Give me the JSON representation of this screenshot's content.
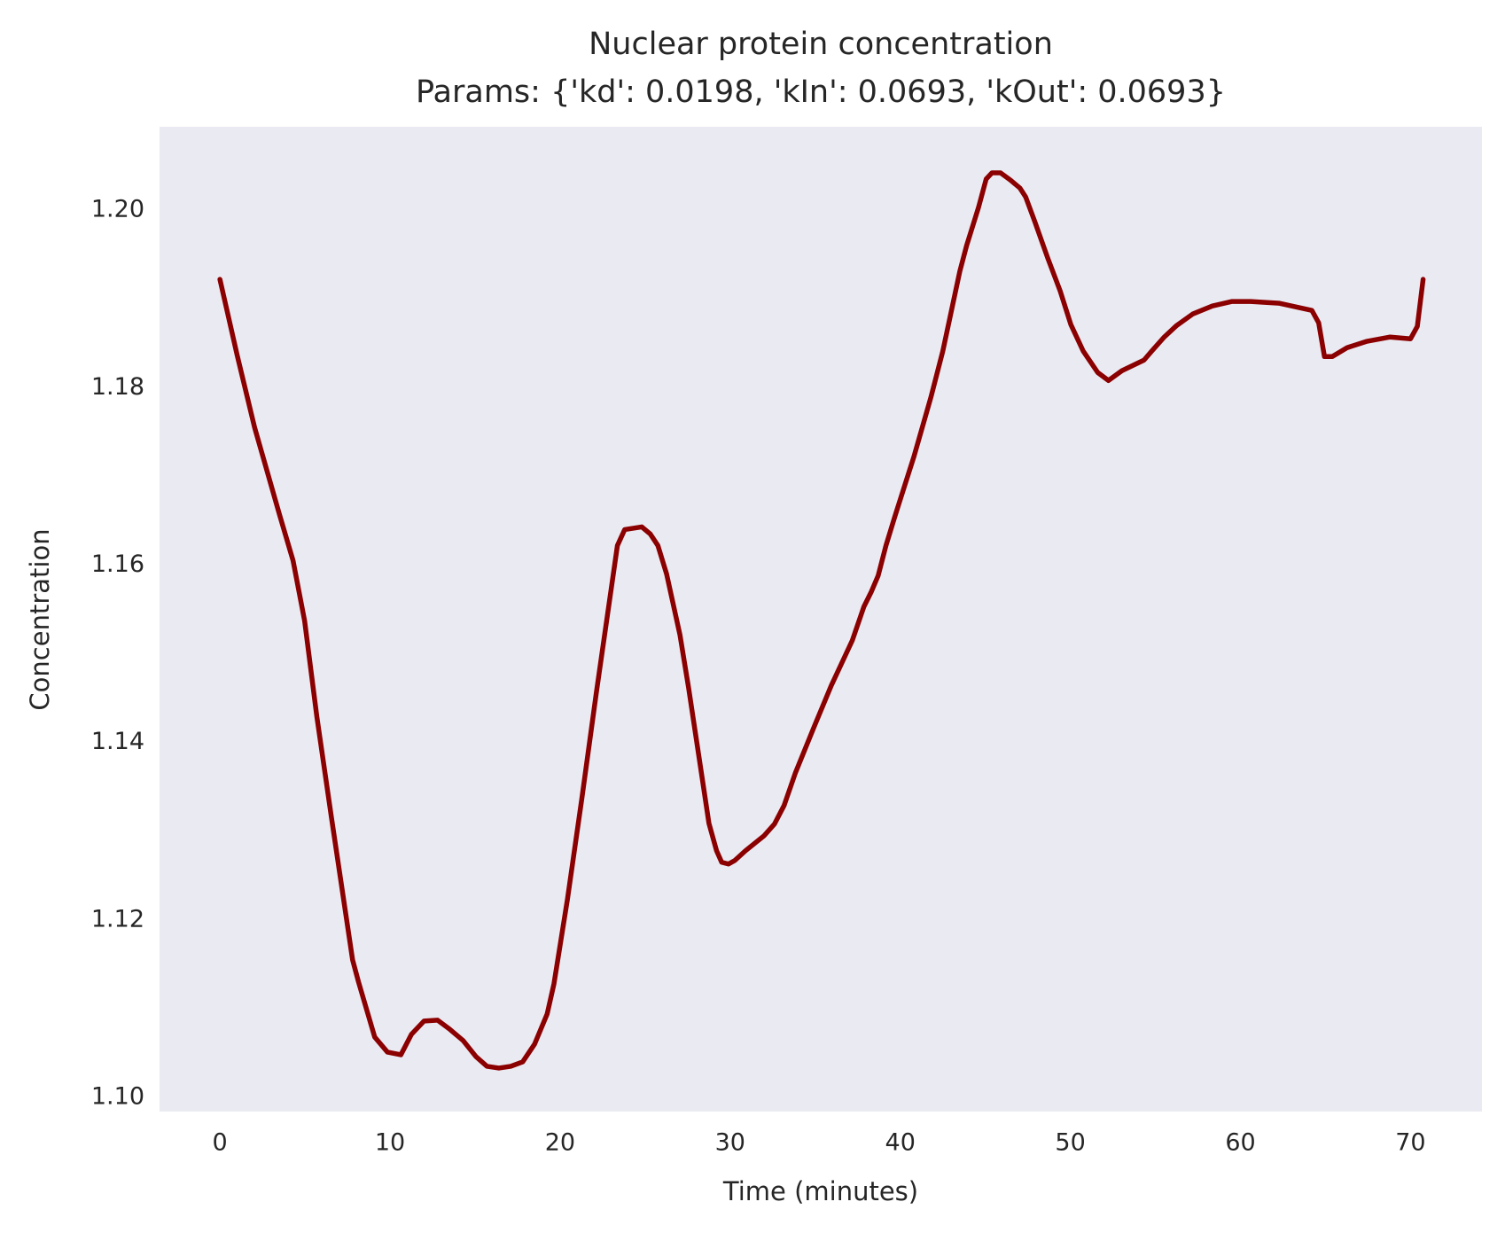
{
  "chart_data": {
    "type": "line",
    "title": "Nuclear protein concentration",
    "subtitle": "Params: {'kd': 0.0198, 'kIn': 0.0693, 'kOut': 0.0693}",
    "x_label": "Time (minutes)",
    "y_label": "Concentration",
    "x": [
      0,
      1.02,
      2.04,
      3.5,
      4.3,
      4.98,
      5.7,
      6.56,
      7.8,
      8.15,
      9.1,
      9.85,
      10.64,
      11.26,
      12.0,
      12.8,
      13.5,
      14.3,
      15.05,
      15.7,
      16.4,
      17.1,
      17.8,
      18.5,
      19.24,
      19.64,
      20.43,
      21.28,
      22.13,
      23.37,
      23.8,
      24.8,
      25.3,
      25.75,
      26.26,
      27.05,
      27.56,
      28.47,
      28.75,
      29.2,
      29.5,
      29.9,
      30.27,
      30.9,
      32.0,
      32.6,
      33.17,
      33.84,
      34.92,
      35.94,
      37.18,
      37.86,
      38.3,
      38.7,
      39.16,
      39.67,
      40.8,
      41.8,
      42.5,
      43.5,
      43.9,
      44.6,
      45.05,
      45.39,
      45.9,
      46.47,
      47.03,
      47.37,
      47.93,
      48.67,
      49.4,
      50.03,
      50.76,
      51.61,
      52.24,
      53.03,
      54.33,
      54.78,
      55.52,
      56.25,
      57.2,
      58.35,
      59.48,
      60.6,
      62.3,
      64.2,
      64.6,
      64.94,
      65.4,
      66.27,
      67.4,
      68.8,
      70.0,
      70.4,
      70.74
    ],
    "series": [
      {
        "name": "Nuclear protein",
        "color": "#8b0000",
        "values": [
          1.1922,
          1.1836,
          1.1755,
          1.1657,
          1.1605,
          1.1537,
          1.1429,
          1.1315,
          1.1155,
          1.113,
          1.1068,
          1.1051,
          1.1048,
          1.1071,
          1.1086,
          1.1087,
          1.1077,
          1.1064,
          1.1046,
          1.1035,
          1.1033,
          1.1035,
          1.104,
          1.106,
          1.1094,
          1.1128,
          1.1223,
          1.1337,
          1.1456,
          1.1622,
          1.164,
          1.1643,
          1.1635,
          1.1622,
          1.159,
          1.1521,
          1.1461,
          1.1345,
          1.1309,
          1.1278,
          1.1265,
          1.1263,
          1.1267,
          1.1278,
          1.1295,
          1.1308,
          1.1329,
          1.1366,
          1.1417,
          1.1464,
          1.1515,
          1.1553,
          1.157,
          1.1588,
          1.1622,
          1.1654,
          1.1722,
          1.1789,
          1.1841,
          1.1931,
          1.196,
          1.2003,
          1.2035,
          1.2042,
          1.2042,
          1.2034,
          1.2025,
          1.2015,
          1.1986,
          1.1946,
          1.1909,
          1.1871,
          1.1841,
          1.1817,
          1.1808,
          1.1819,
          1.1831,
          1.1841,
          1.1857,
          1.187,
          1.1883,
          1.1892,
          1.1897,
          1.1897,
          1.1895,
          1.1887,
          1.1873,
          1.1835,
          1.1835,
          1.1845,
          1.1852,
          1.1857,
          1.1855,
          1.1869,
          1.1922
        ]
      }
    ],
    "xlim": [
      -3.55,
      74.2
    ],
    "ylim": [
      1.0984,
      1.2094
    ],
    "xticks": [
      0,
      10,
      20,
      30,
      40,
      50,
      60,
      70
    ],
    "yticks": [
      {
        "value": 1.1,
        "label": "1.10"
      },
      {
        "value": 1.12,
        "label": "1.12"
      },
      {
        "value": 1.14,
        "label": "1.14"
      },
      {
        "value": 1.16,
        "label": "1.16"
      },
      {
        "value": 1.18,
        "label": "1.18"
      },
      {
        "value": 1.2,
        "label": "1.20"
      }
    ],
    "background": "#eaeaf2",
    "grid": false
  }
}
